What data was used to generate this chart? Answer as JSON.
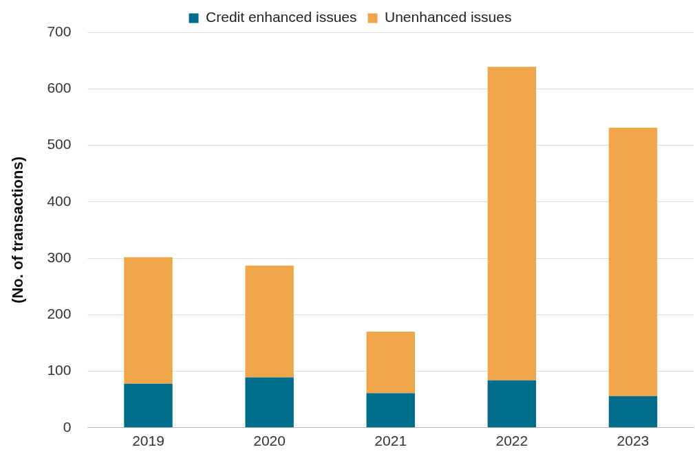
{
  "chart_data": {
    "type": "bar",
    "ylabel": "(No. of transactions)",
    "categories": [
      "2019",
      "2020",
      "2021",
      "2022",
      "2023"
    ],
    "stacked": true,
    "series": [
      {
        "name": "Credit enhanced issues",
        "color": "#006e8a",
        "values": [
          78,
          89,
          61,
          84,
          56
        ]
      },
      {
        "name": "Unenhanced issues",
        "color": "#f0a64b",
        "values": [
          224,
          198,
          109,
          555,
          475
        ]
      }
    ],
    "ylim": [
      0,
      700
    ],
    "yticks": [
      0,
      100,
      200,
      300,
      400,
      500,
      600,
      700
    ],
    "grid": "y",
    "legend": "top"
  }
}
